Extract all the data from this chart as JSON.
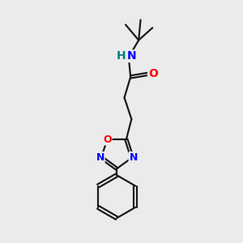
{
  "bg_color": "#ebebeb",
  "bond_color": "#1a1a1a",
  "N_color": "#0000ff",
  "O_color": "#ff0000",
  "NH_color": "#008080",
  "line_width": 1.6,
  "figsize": [
    3.0,
    3.0
  ],
  "dpi": 100,
  "xlim": [
    0,
    10
  ],
  "ylim": [
    0,
    10
  ],
  "font_size_ring": 9,
  "font_size_chain": 10
}
